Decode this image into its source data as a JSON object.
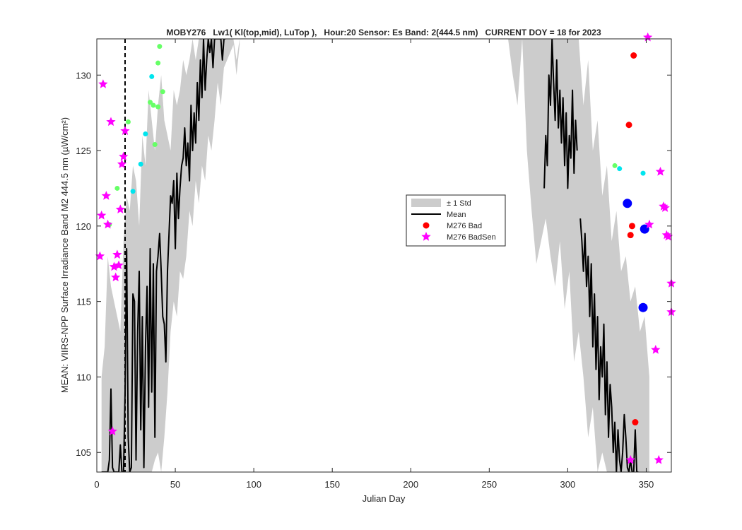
{
  "chart_data": {
    "type": "line",
    "title": "MOBY276   Lw1( Kl(top,mid), LuTop ),   Hour:20 Sensor: Es Band: 2(444.5 nm)   CURRENT DOY = 18 for 2023",
    "xlabel": "Julian Day",
    "ylabel": "MEAN: VIIRS-NPP Surface Irradiance Band M2 444.5 nm (µW/cm²)",
    "xlim": [
      0,
      366
    ],
    "ylim": [
      103.7,
      132.4
    ],
    "xticks": [
      0,
      50,
      100,
      150,
      200,
      250,
      300,
      350
    ],
    "yticks": [
      105,
      110,
      115,
      120,
      125,
      130
    ],
    "current_doy": 18,
    "legend": {
      "placement": "center-right",
      "entries": [
        {
          "label": "± 1 Std",
          "kind": "band",
          "color": "#cccccc"
        },
        {
          "label": "Mean",
          "kind": "line",
          "color": "#000000"
        },
        {
          "label": "M276 Bad",
          "kind": "dot",
          "color": "#ff0000"
        },
        {
          "label": "M276 BadSen",
          "kind": "star",
          "color": "#ff00ff"
        }
      ]
    },
    "colors": {
      "band": "#cccccc",
      "mean": "#000000",
      "bad": "#ff0000",
      "badsen": "#ff00ff",
      "green": "#66ff66",
      "cyan": "#00e5ee",
      "blue": "#0000ff"
    },
    "mean_series": [
      {
        "x": [
          3,
          4,
          5,
          6,
          7,
          8,
          9,
          10,
          11,
          12,
          13,
          14,
          15,
          16,
          17,
          18,
          19,
          20,
          21,
          22,
          23,
          24,
          25,
          26,
          27,
          28,
          29,
          30,
          31,
          32,
          33,
          34,
          35,
          36,
          37,
          38,
          39,
          40,
          41,
          42,
          43,
          44,
          45,
          46,
          47,
          48,
          49,
          50,
          51,
          52,
          53,
          54,
          55,
          56,
          57,
          58,
          59,
          60,
          61,
          62,
          63,
          64,
          65,
          66,
          67,
          68,
          69,
          70,
          71,
          72,
          73,
          74,
          75,
          76,
          77,
          78,
          79,
          80,
          81,
          82
        ],
        "y": [
          103.7,
          103.7,
          103.7,
          103.7,
          103.7,
          104.5,
          109.2,
          104.0,
          103.7,
          103.7,
          103.7,
          103.7,
          105.5,
          103.7,
          103.7,
          109.0,
          118.5,
          106.0,
          103.7,
          104.0,
          115.5,
          115.0,
          104.5,
          113.0,
          117.0,
          106.5,
          114.0,
          104.0,
          112.0,
          116.0,
          108.0,
          118.5,
          109.0,
          117.5,
          106.0,
          117.0,
          118.0,
          119.5,
          117.0,
          114.0,
          113.5,
          111.0,
          117.0,
          119.5,
          122.0,
          121.5,
          123.0,
          118.5,
          123.5,
          120.5,
          122.5,
          124.0,
          124.5,
          126.5,
          124.0,
          125.5,
          123.0,
          128.0,
          125.0,
          127.5,
          125.5,
          129.5,
          127.0,
          131.0,
          128.5,
          132.4,
          129.0,
          131.0,
          132.4,
          131.5,
          132.4,
          130.5,
          132.4,
          132.4,
          132.4,
          132.4,
          132.4,
          131.0,
          132.4,
          132.4
        ]
      },
      {
        "x": [
          285,
          286,
          287,
          288,
          289,
          290,
          291,
          292,
          293,
          294,
          295,
          296,
          297,
          298,
          299,
          300,
          301,
          302,
          303,
          304,
          305,
          306
        ],
        "y": [
          122.5,
          126.0,
          124.0,
          130.0,
          128.0,
          132.4,
          129.5,
          127.0,
          131.0,
          126.5,
          129.0,
          125.5,
          128.5,
          124.0,
          127.5,
          122.5,
          126.0,
          124.5,
          129.0,
          123.5,
          127.0,
          125.0
        ]
      },
      {
        "x": [
          308,
          309,
          310,
          311,
          312,
          313,
          314,
          315,
          316,
          317,
          318,
          319,
          320,
          321,
          322,
          323,
          324,
          325,
          326,
          327,
          328,
          329,
          330,
          331,
          332,
          333,
          334,
          335,
          336,
          337,
          338,
          339,
          340,
          341,
          342,
          343,
          344,
          345
        ],
        "y": [
          120.5,
          119.0,
          117.0,
          119.5,
          116.0,
          118.0,
          114.0,
          117.5,
          112.0,
          115.5,
          110.5,
          114.0,
          108.5,
          112.0,
          110.0,
          113.5,
          107.5,
          111.0,
          106.0,
          109.5,
          108.0,
          105.0,
          107.0,
          103.7,
          106.5,
          104.5,
          103.7,
          105.0,
          107.5,
          106.0,
          104.0,
          103.7,
          104.5,
          103.7,
          103.7,
          106.5,
          103.7,
          103.7
        ]
      }
    ],
    "std_band": {
      "x": [
        3,
        5,
        7,
        9,
        11,
        13,
        15,
        17,
        19,
        21,
        23,
        25,
        27,
        29,
        31,
        33,
        35,
        37,
        39,
        41,
        43,
        45,
        47,
        49,
        51,
        53,
        55,
        57,
        59,
        61,
        63,
        65,
        67,
        69,
        71,
        73,
        75,
        77,
        79,
        81,
        83,
        85,
        87,
        89,
        91
      ],
      "upper": [
        110,
        112,
        118,
        116,
        115,
        114,
        113,
        119,
        122,
        121,
        124,
        123,
        120,
        126,
        124,
        129,
        127,
        125,
        128,
        130,
        127,
        126,
        125,
        129,
        128,
        129,
        131,
        130,
        131,
        132.4,
        131,
        132.4,
        132.4,
        132.4,
        132.4,
        132.4,
        132.4,
        132.4,
        132.4,
        132.4,
        132.4,
        132.4,
        132.4,
        131.0,
        132.4
      ],
      "lower": [
        103.7,
        103.7,
        103.7,
        103.7,
        103.7,
        103.7,
        103.7,
        103.7,
        103.7,
        103.7,
        103.7,
        103.7,
        103.7,
        103.7,
        103.7,
        103.7,
        103.7,
        104.5,
        105.0,
        103.7,
        106.0,
        109.0,
        113.0,
        115.0,
        114.0,
        117.0,
        116.5,
        118.0,
        121.0,
        120.0,
        123.0,
        121.5,
        124.0,
        123.0,
        126.0,
        125.0,
        127.0,
        129.5,
        128.0,
        130.5,
        131.0,
        131.5,
        132.0,
        130.0,
        132.0
      ]
    },
    "std_band_late": {
      "x": [
        262,
        265,
        268,
        271,
        274,
        277,
        280,
        283,
        286,
        289,
        292,
        295,
        298,
        301,
        304,
        307,
        310,
        313,
        316,
        319,
        322,
        325,
        328,
        331,
        334,
        337,
        340,
        343,
        346,
        349,
        352
      ],
      "upper": [
        132.4,
        132.4,
        132.4,
        132.4,
        132.4,
        132.4,
        132.4,
        132.4,
        132.4,
        132.4,
        132.4,
        132.4,
        132.4,
        132.4,
        132.4,
        132.4,
        128,
        131,
        125,
        127,
        122,
        124,
        119,
        121,
        117,
        118,
        115,
        116,
        113,
        114,
        110
      ],
      "lower": [
        132.4,
        130.0,
        128.0,
        132.4,
        125.0,
        121.0,
        117.5,
        119.0,
        120.5,
        118.0,
        116.0,
        119.0,
        114.5,
        117.0,
        111.0,
        113.0,
        110.0,
        106.0,
        108.0,
        103.7,
        105.0,
        103.7,
        103.7,
        103.7,
        103.7,
        103.7,
        103.7,
        103.7,
        103.7,
        103.7,
        103.7
      ]
    },
    "badsen_points": {
      "x": [
        2,
        3,
        4,
        6,
        7,
        9,
        10,
        11,
        12,
        13,
        14,
        15,
        16,
        17,
        18,
        340,
        351,
        352,
        356,
        359,
        361,
        362,
        364,
        366,
        358,
        366,
        363
      ],
      "y": [
        118.0,
        120.7,
        129.4,
        122.0,
        120.1,
        126.9,
        106.4,
        117.3,
        116.6,
        118.1,
        117.4,
        121.1,
        124.1,
        124.6,
        126.3,
        104.5,
        132.5,
        120.1,
        111.8,
        123.6,
        121.3,
        121.2,
        119.3,
        116.2,
        104.5,
        114.3,
        119.4
      ]
    },
    "bad_points": {
      "x": [
        339,
        340,
        341,
        342,
        343
      ],
      "y": [
        126.7,
        119.4,
        120.0,
        131.3,
        107.0
      ]
    },
    "green_points": {
      "x": [
        8,
        13,
        20,
        34,
        36,
        39,
        39,
        40,
        42,
        37,
        330
      ],
      "y": [
        120.1,
        122.5,
        126.9,
        128.2,
        128.0,
        130.8,
        127.9,
        131.9,
        128.9,
        125.4,
        124.0
      ]
    },
    "cyan_points": {
      "x": [
        23,
        28,
        31,
        35,
        333,
        348
      ],
      "y": [
        122.3,
        124.1,
        126.1,
        129.9,
        123.8,
        123.5
      ]
    },
    "blue_points": {
      "x": [
        338,
        349,
        348
      ],
      "y": [
        121.5,
        119.8,
        114.6
      ]
    }
  }
}
